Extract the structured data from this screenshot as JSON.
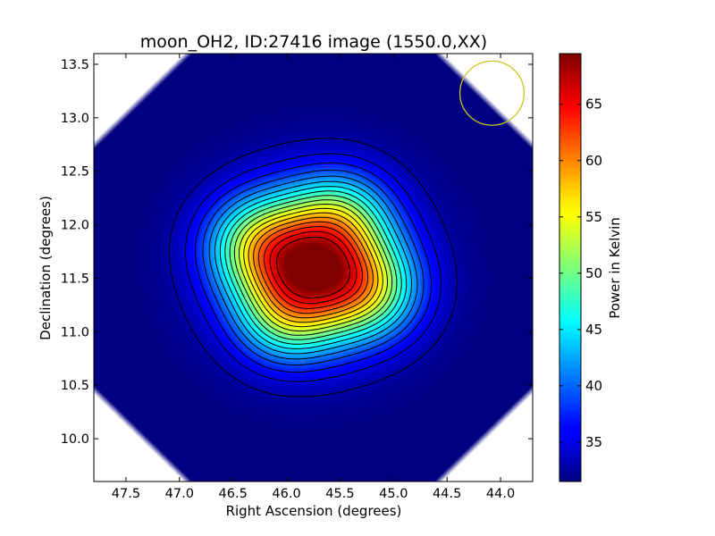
{
  "chart_data": {
    "type": "heatmap",
    "title": "moon_OH2, ID:27416 image (1550.0,XX)",
    "xlabel": "Right Ascension (degrees)",
    "ylabel": "Declination (degrees)",
    "xlim": [
      47.8,
      43.7
    ],
    "ylim": [
      9.6,
      13.6
    ],
    "x_ticks": [
      "47.5",
      "47.0",
      "46.5",
      "46.0",
      "45.5",
      "45.0",
      "44.5",
      "44.0"
    ],
    "x_tick_values": [
      47.5,
      47.0,
      46.5,
      46.0,
      45.5,
      45.0,
      44.5,
      44.0
    ],
    "y_ticks": [
      "10.0",
      "10.5",
      "11.0",
      "11.5",
      "12.0",
      "12.5",
      "13.0",
      "13.5"
    ],
    "y_tick_values": [
      10.0,
      10.5,
      11.0,
      11.5,
      12.0,
      12.5,
      13.0,
      13.5
    ],
    "colormap": "jet",
    "colorbar": {
      "label": "Power in Kelvin",
      "range": [
        31.5,
        69.5
      ],
      "ticks": [
        "35",
        "40",
        "45",
        "50",
        "55",
        "60",
        "65"
      ],
      "tick_values": [
        35,
        40,
        45,
        50,
        55,
        60,
        65
      ]
    },
    "peak": {
      "ra": 45.75,
      "dec": 11.6,
      "value": 69.5
    },
    "background_value": 31.5,
    "contour_levels": [
      33,
      35,
      37,
      39,
      41,
      43,
      45,
      47,
      49,
      51,
      53,
      55,
      57,
      59,
      61,
      63,
      65,
      67
    ],
    "beam_circle": {
      "ra": 44.08,
      "dec": 13.23,
      "radius_deg": 0.3,
      "color": "#c8c820"
    }
  }
}
